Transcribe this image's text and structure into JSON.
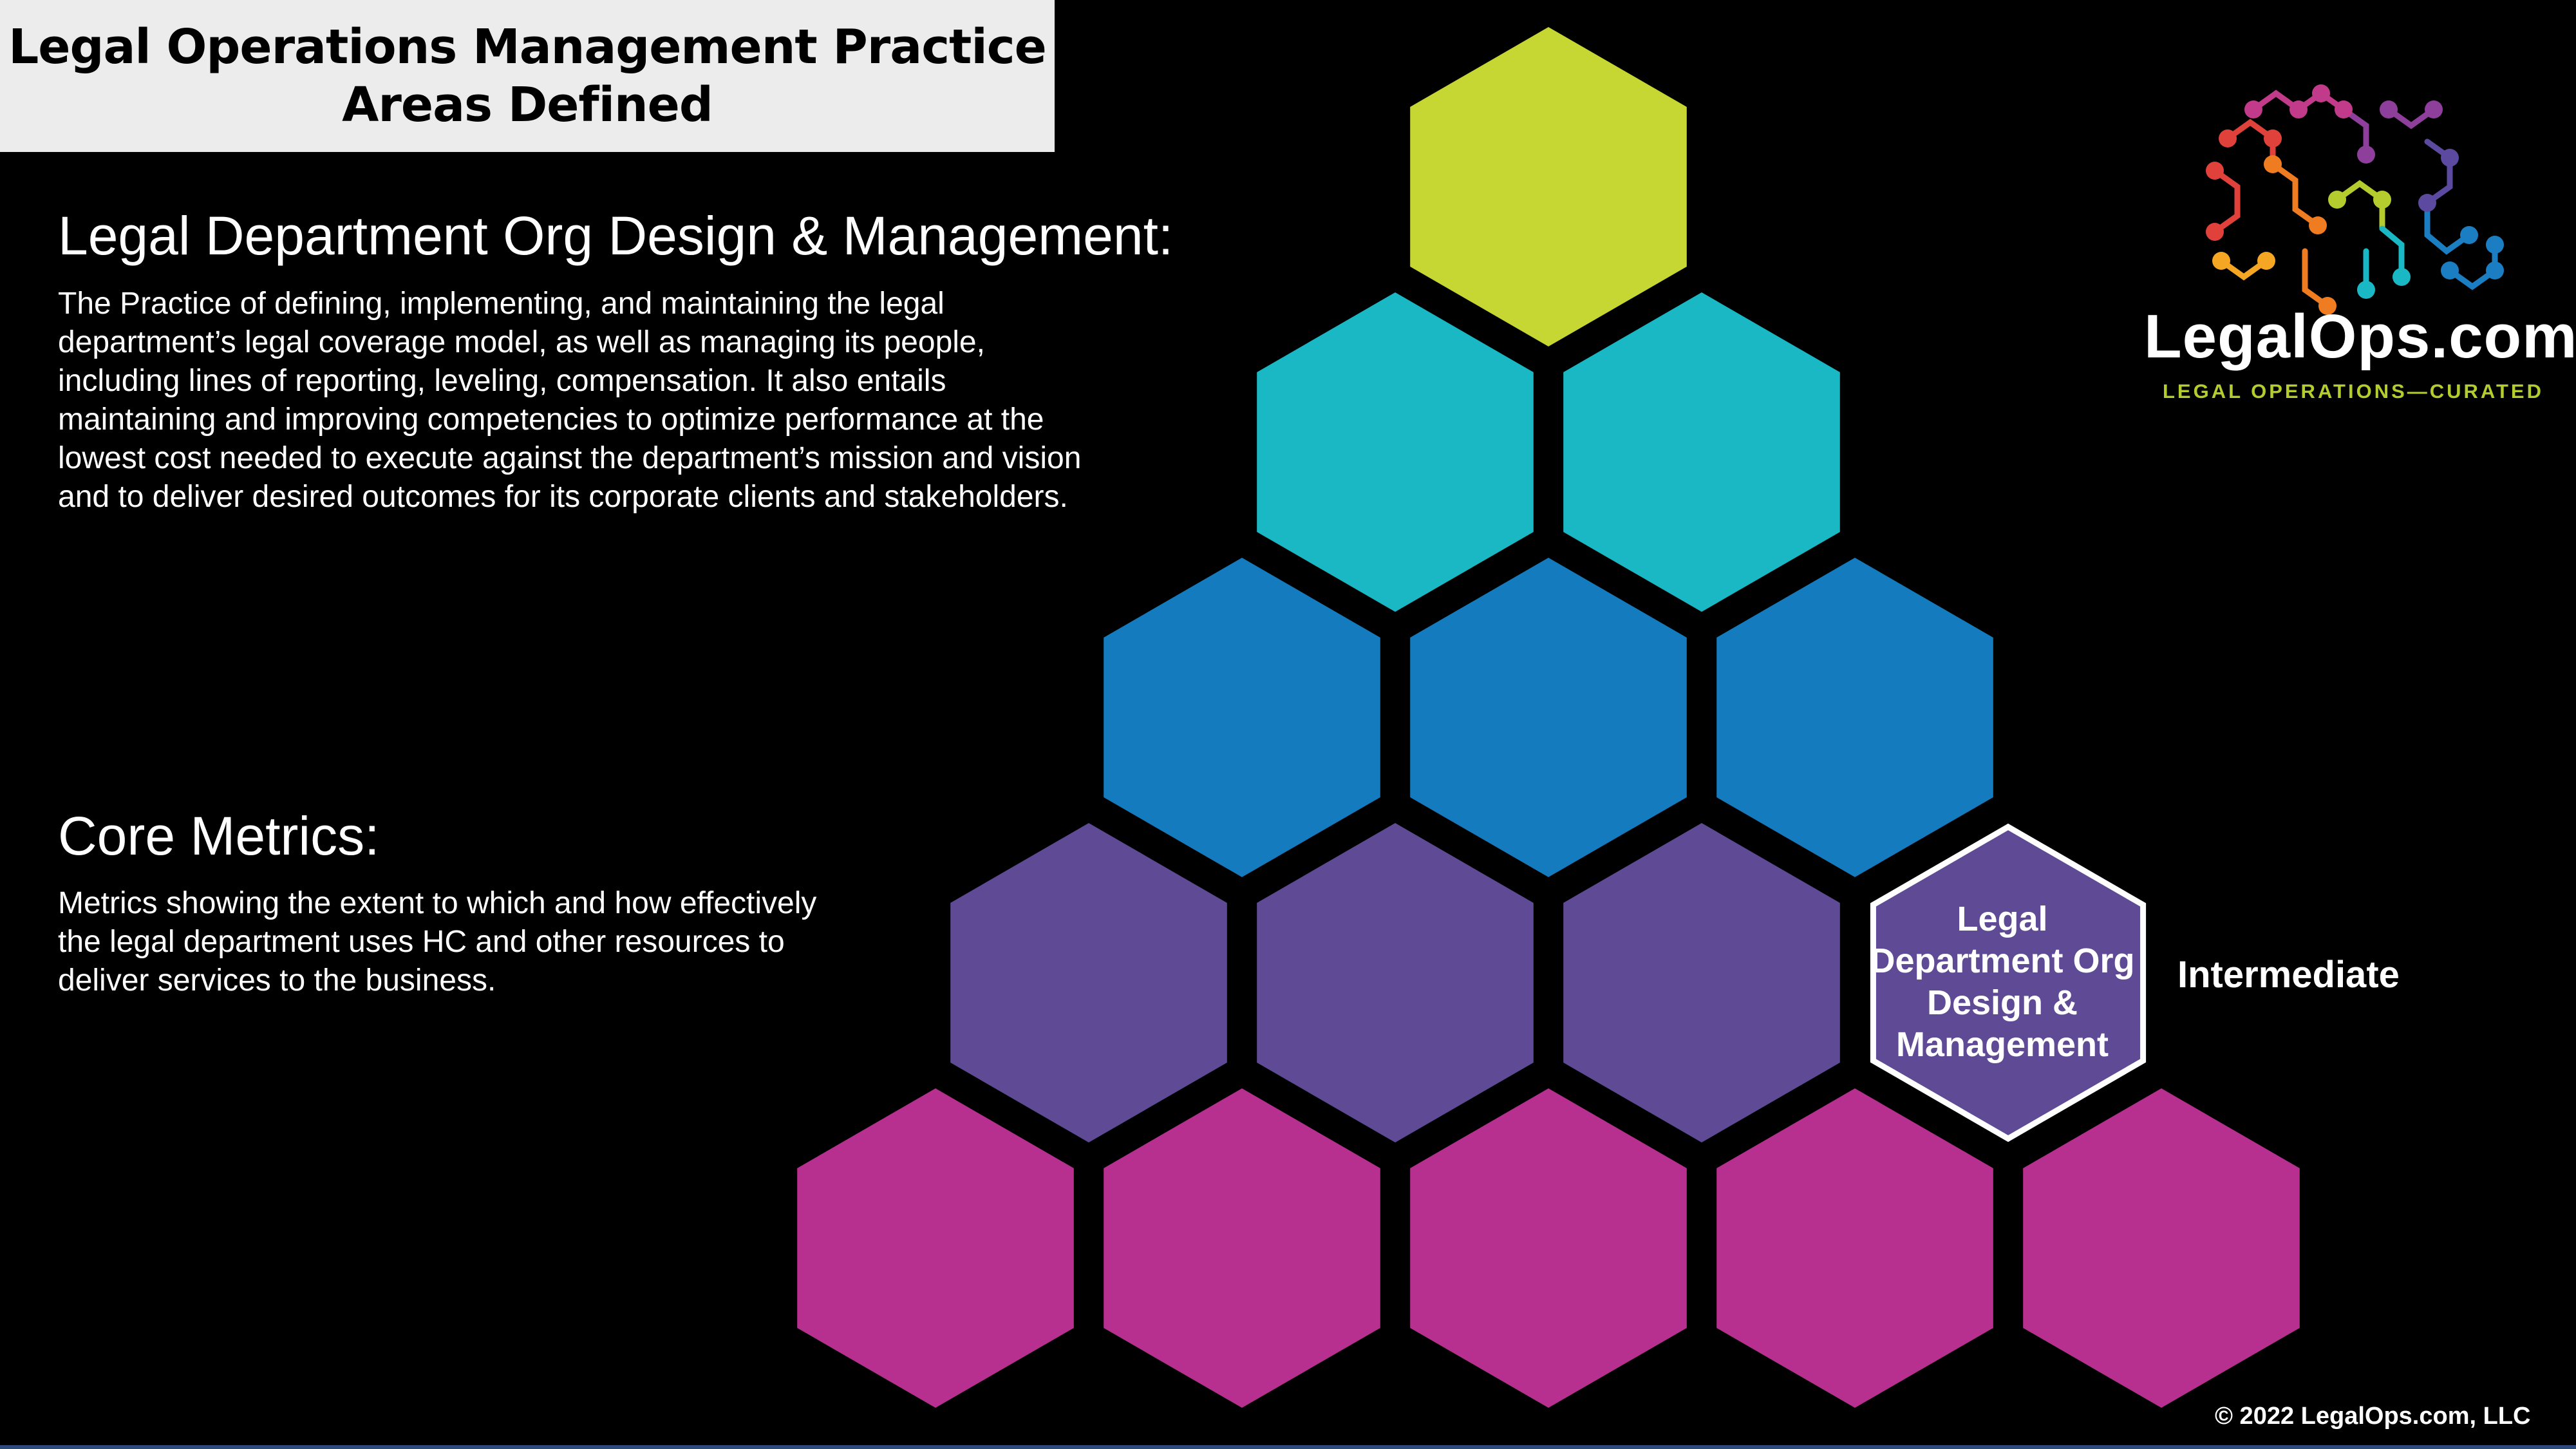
{
  "header": {
    "title_line1": "Legal Operations Management Practice",
    "title_line2": "Areas Defined"
  },
  "practice": {
    "heading": "Legal Department Org Design & Management:",
    "description": "The Practice of defining, implementing, and maintaining the legal department’s legal coverage model, as well as managing its people, including lines of reporting, leveling, compensation.  It also entails maintaining and improving competencies to optimize performance at the lowest cost needed to execute against the department’s mission and vision and to deliver desired outcomes for its corporate clients and stakeholders."
  },
  "metrics": {
    "heading": "Core Metrics:",
    "description": "Metrics showing the extent to which and how effectively the legal department uses HC and other resources to deliver services to the business."
  },
  "pyramid": {
    "rows": [
      {
        "count": 1,
        "color": "#c6d734"
      },
      {
        "count": 2,
        "color": "#1ab8c4"
      },
      {
        "count": 3,
        "color": "#137bbe"
      },
      {
        "count": 4,
        "color": "#5f4a95"
      },
      {
        "count": 5,
        "color": "#b7308f"
      }
    ],
    "highlight": {
      "row": 3,
      "col": 3,
      "color": "#5f4a95",
      "border_color": "#ffffff",
      "label": "Legal Department Org Design & Management",
      "level": "Intermediate"
    }
  },
  "logo": {
    "name": "LegalOps.com",
    "tagline": "LEGAL OPERATIONS—CURATED",
    "icon": "hexagon-network-icon"
  },
  "footer": {
    "copyright": "© 2022 LegalOps.com, LLC"
  }
}
